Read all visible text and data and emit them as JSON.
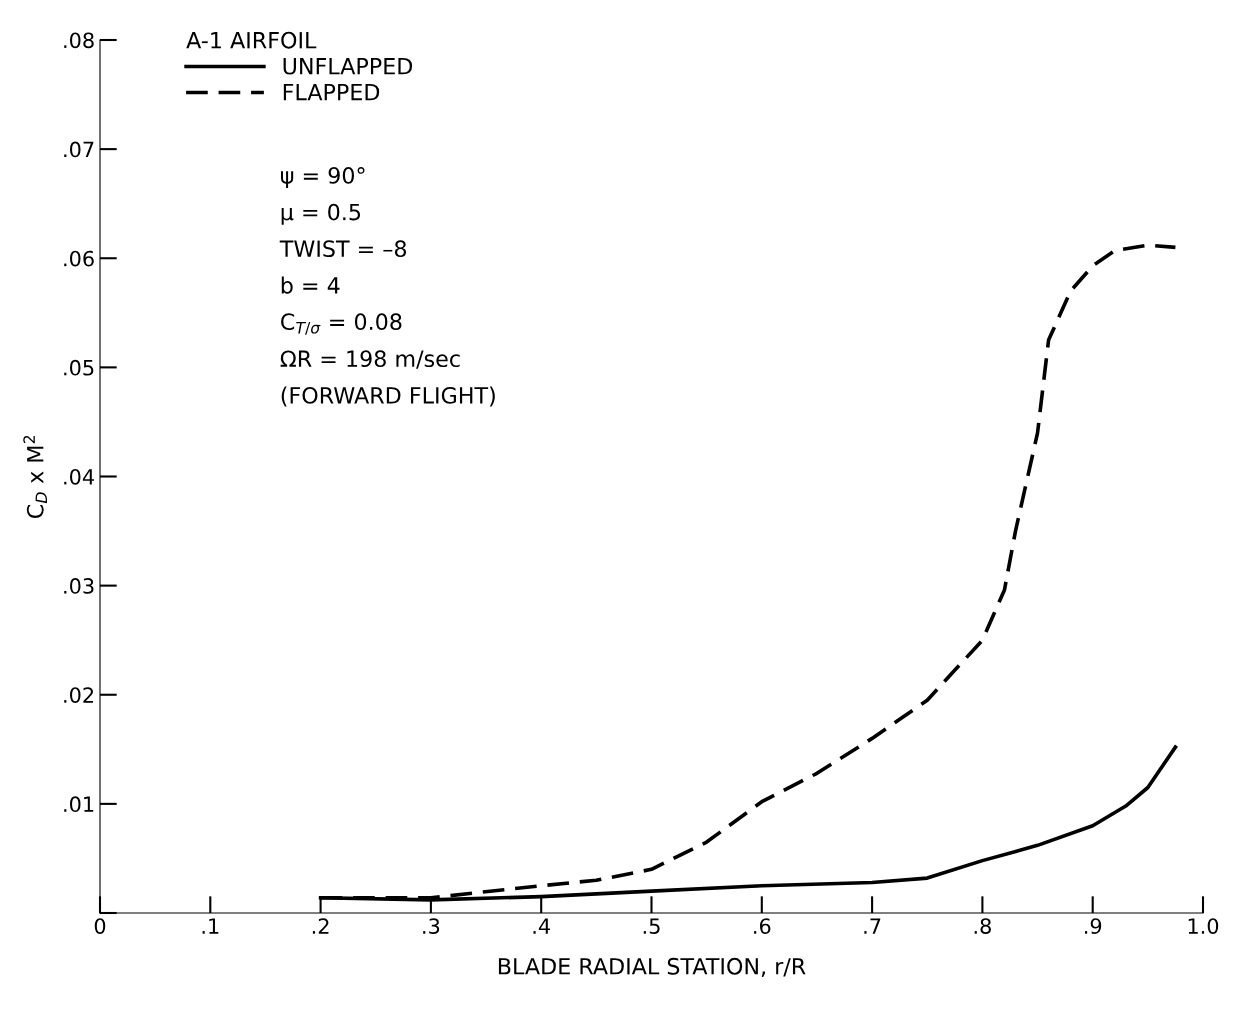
{
  "chart_data": {
    "type": "line",
    "xlabel": "BLADE RADIAL STATION, r/R",
    "ylabel": "C$_{D}$ x M$^{2}$",
    "legend_title": "A-1 AIRFOIL",
    "legend": "top left",
    "grid": false,
    "marker": "none",
    "xlim": [
      0,
      1.0
    ],
    "ylim": [
      0,
      0.08
    ],
    "xticks": [
      0,
      {
        "value": 0.1,
        "label": ".1"
      },
      {
        "value": 0.2,
        "label": ".2"
      },
      {
        "value": 0.3,
        "label": ".3"
      },
      {
        "value": 0.4,
        "label": ".4"
      },
      {
        "value": 0.5,
        "label": ".5"
      },
      {
        "value": 0.6,
        "label": ".6"
      },
      {
        "value": 0.7,
        "label": ".7"
      },
      {
        "value": 0.8,
        "label": ".8"
      },
      {
        "value": 0.9,
        "label": ".9"
      },
      {
        "value": 1.0,
        "label": "1.0"
      }
    ],
    "yticks": [
      {
        "value": 0,
        "label": null
      },
      {
        "value": 0.01,
        "label": ".01"
      },
      {
        "value": 0.02,
        "label": ".02"
      },
      {
        "value": 0.03,
        "label": ".03"
      },
      {
        "value": 0.04,
        "label": ".04"
      },
      {
        "value": 0.05,
        "label": ".05"
      },
      {
        "value": 0.06,
        "label": ".06"
      },
      {
        "value": 0.07,
        "label": ".07"
      },
      {
        "value": 0.08,
        "label": ".08"
      }
    ],
    "series": [
      {
        "name": "UNFLAPPED",
        "color": "#000000",
        "line_style": "solid",
        "x": [
          0.2,
          0.3,
          0.4,
          0.5,
          0.6,
          0.7,
          0.75,
          0.8,
          0.85,
          0.9,
          0.93,
          0.95,
          0.975
        ],
        "values": [
          0.0014,
          0.0012,
          0.0015,
          0.002,
          0.0025,
          0.0028,
          0.0032,
          0.0048,
          0.0062,
          0.008,
          0.0098,
          0.0115,
          0.0152
        ]
      },
      {
        "name": "FLAPPED",
        "color": "#000000",
        "line_style": "dashed",
        "x": [
          0.2,
          0.3,
          0.4,
          0.45,
          0.5,
          0.55,
          0.6,
          0.65,
          0.7,
          0.75,
          0.8,
          0.82,
          0.83,
          0.85,
          0.86,
          0.88,
          0.9,
          0.92,
          0.95,
          0.975
        ],
        "values": [
          0.0014,
          0.0014,
          0.0025,
          0.003,
          0.004,
          0.0065,
          0.0102,
          0.0128,
          0.016,
          0.0195,
          0.025,
          0.0296,
          0.035,
          0.044,
          0.0525,
          0.057,
          0.0593,
          0.0607,
          0.0612,
          0.061
        ]
      }
    ],
    "annotations": [
      "ψ = 90°",
      "μ = 0.5",
      "TWIST = –8",
      "b = 4",
      "C$_{T/σ}$ = 0.08",
      "ΩR = 198 m/sec",
      "(FORWARD FLIGHT)"
    ]
  }
}
